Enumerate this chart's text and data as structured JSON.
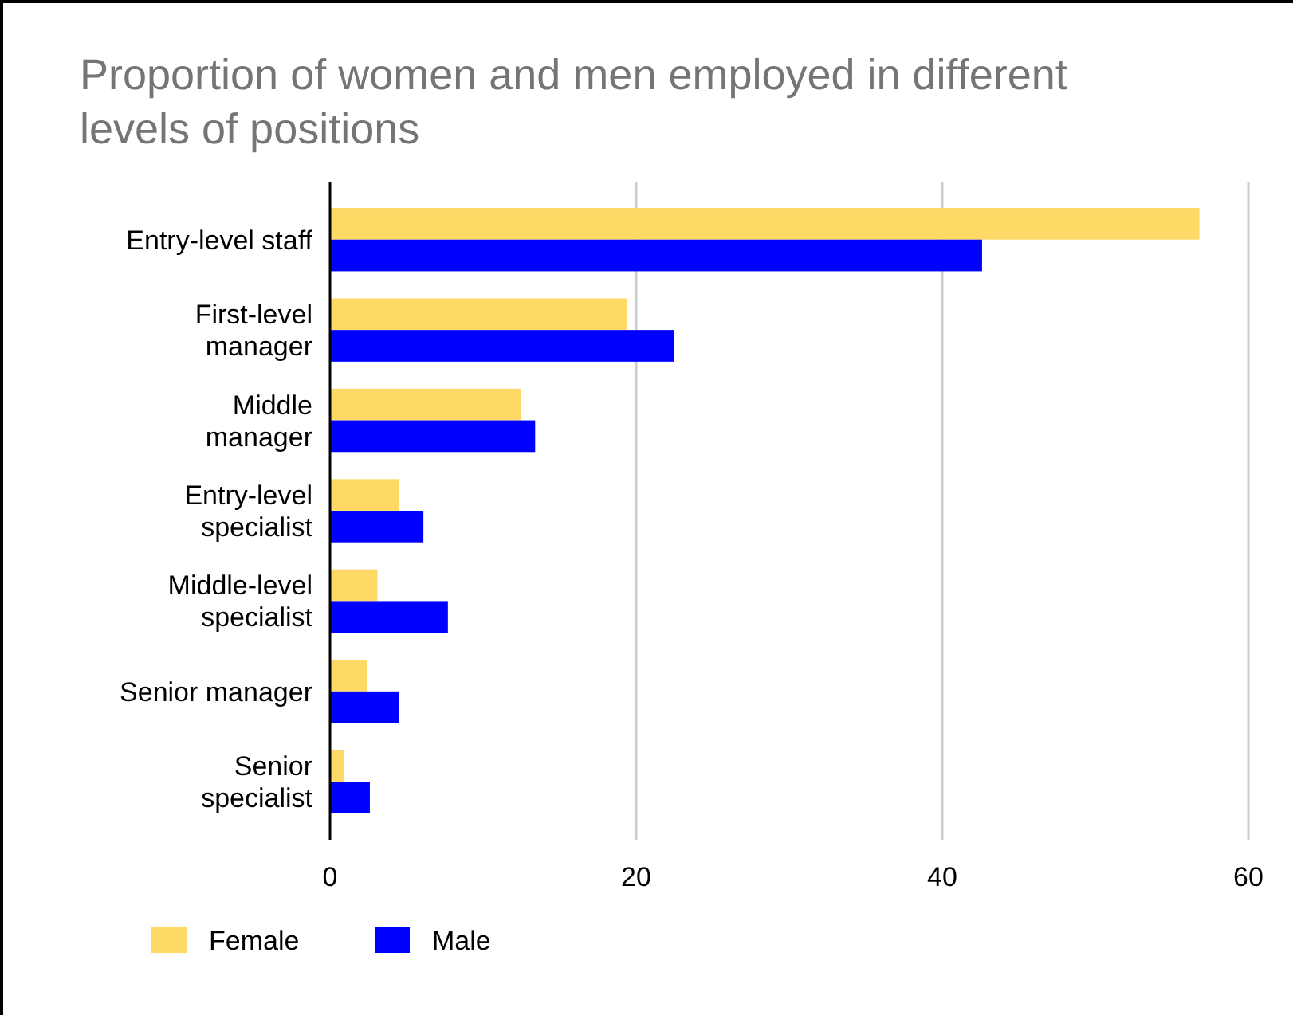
{
  "chart_data": {
    "type": "bar",
    "orientation": "horizontal",
    "title": "Proportion of women and men employed in different levels of positions",
    "categories": [
      "Entry-level staff",
      "First-level\nmanager",
      "Middle\nmanager",
      "Entry-level\nspecialist",
      "Middle-level\nspecialist",
      "Senior manager",
      "Senior\nspecialist"
    ],
    "series": [
      {
        "name": "Female",
        "color": "#ffd966",
        "values": [
          56.8,
          19.4,
          12.5,
          4.5,
          3.1,
          2.4,
          0.9
        ]
      },
      {
        "name": "Male",
        "color": "#0000ff",
        "values": [
          42.6,
          22.5,
          13.4,
          6.1,
          7.7,
          4.5,
          2.6
        ]
      }
    ],
    "xlim": [
      0,
      60
    ],
    "xticks": [
      0,
      20,
      40,
      60
    ],
    "grid": "x",
    "legend": "bottom left"
  }
}
